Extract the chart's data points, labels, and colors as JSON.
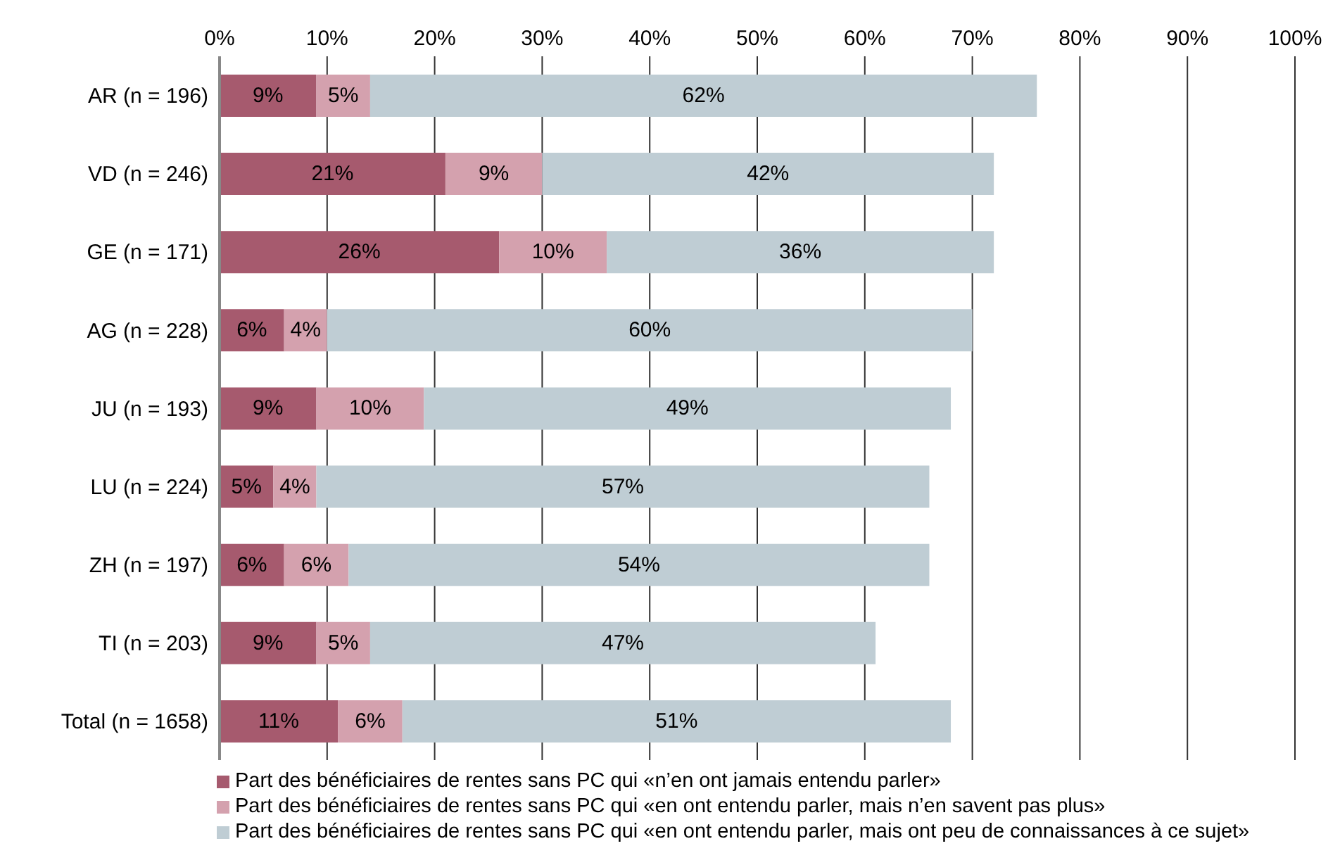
{
  "chart_data": {
    "type": "bar",
    "orientation": "horizontal",
    "stacked": true,
    "categories": [
      "AR (n = 196)",
      "VD (n = 246)",
      "GE (n = 171)",
      "AG (n = 228)",
      "JU (n = 193)",
      "LU (n = 224)",
      "ZH (n = 197)",
      "TI (n = 203)",
      "Total (n = 1658)"
    ],
    "series": [
      {
        "name": "Part des bénéficiaires de rentes sans PC qui «n’en ont jamais entendu parler»",
        "color": "#a65a6e",
        "values": [
          9,
          21,
          26,
          6,
          9,
          5,
          6,
          9,
          11
        ],
        "value_labels": [
          "9%",
          "21%",
          "26%",
          "6%",
          "9%",
          "5%",
          "6%",
          "9%",
          "11%"
        ]
      },
      {
        "name": "Part des bénéficiaires de rentes sans PC qui «en ont entendu parler, mais n’en savent pas plus»",
        "color": "#d4a1ae",
        "values": [
          5,
          9,
          10,
          4,
          10,
          4,
          6,
          5,
          6
        ],
        "value_labels": [
          "5%",
          "9%",
          "10%",
          "4%",
          "10%",
          "4%",
          "6%",
          "5%",
          "6%"
        ]
      },
      {
        "name": "Part des bénéficiaires de rentes sans PC qui «en ont entendu parler, mais ont peu de connaissances à ce sujet»",
        "color": "#bfcdd4",
        "values": [
          62,
          42,
          36,
          60,
          49,
          57,
          54,
          47,
          51
        ],
        "value_labels": [
          "62%",
          "42%",
          "36%",
          "60%",
          "49%",
          "57%",
          "54%",
          "47%",
          "51%"
        ]
      }
    ],
    "xlim": [
      0,
      100
    ],
    "xticks": [
      {
        "value": 0,
        "label": "0%"
      },
      {
        "value": 10,
        "label": "10%"
      },
      {
        "value": 20,
        "label": "20%"
      },
      {
        "value": 30,
        "label": "30%"
      },
      {
        "value": 40,
        "label": "40%"
      },
      {
        "value": 50,
        "label": "50%"
      },
      {
        "value": 60,
        "label": "60%"
      },
      {
        "value": 70,
        "label": "70%"
      },
      {
        "value": 80,
        "label": "80%"
      },
      {
        "value": 90,
        "label": "90%"
      },
      {
        "value": 100,
        "label": "100%"
      }
    ],
    "grid": "x",
    "legend": "bottom"
  }
}
